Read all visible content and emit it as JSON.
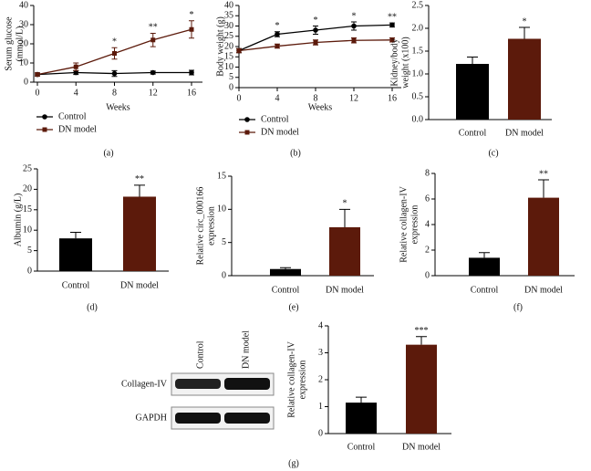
{
  "chart_data": [
    {
      "type": "line",
      "panel_label": "(a)",
      "ylabel": [
        "Serum glucose",
        "(mmol/L)"
      ],
      "xlabel": "Weeks",
      "x": [
        0,
        4,
        8,
        12,
        16
      ],
      "xlim": [
        0,
        16
      ],
      "xticks": [
        0,
        4,
        8,
        12,
        16
      ],
      "ylim": [
        0,
        40
      ],
      "yticks": [
        0,
        10,
        20,
        30,
        40
      ],
      "series": [
        {
          "name": "Control",
          "color": "#000000",
          "marker": "circle",
          "values": [
            4,
            5,
            4.5,
            5,
            5
          ],
          "error": [
            0.8,
            1,
            1.5,
            0.8,
            1.2
          ]
        },
        {
          "name": "DN model",
          "color": "#5c1a0b",
          "marker": "square",
          "values": [
            4,
            8,
            15,
            22,
            27.5
          ],
          "error": [
            0.8,
            2,
            3,
            3.5,
            4.5
          ]
        }
      ],
      "annotations": [
        {
          "text": "*",
          "x": 8
        },
        {
          "text": "**",
          "x": 12
        },
        {
          "text": "*",
          "x": 16
        }
      ]
    },
    {
      "type": "line",
      "panel_label": "(b)",
      "ylabel": [
        "Body weight (g)"
      ],
      "xlabel": "Weeks",
      "x": [
        0,
        4,
        8,
        12,
        16
      ],
      "xlim": [
        0,
        16
      ],
      "xticks": [
        0,
        4,
        8,
        12,
        16
      ],
      "ylim": [
        0,
        40
      ],
      "yticks": [
        0,
        5,
        10,
        15,
        20,
        25,
        30,
        35,
        40
      ],
      "series": [
        {
          "name": "Control",
          "color": "#000000",
          "marker": "circle",
          "values": [
            18,
            26,
            28,
            30,
            30.5
          ],
          "error": [
            1,
            1.2,
            2,
            2,
            1
          ]
        },
        {
          "name": "DN model",
          "color": "#5c1a0b",
          "marker": "square",
          "values": [
            18,
            20.2,
            22,
            23,
            23.2
          ],
          "error": [
            1,
            1,
            1.2,
            1.2,
            1
          ]
        }
      ],
      "annotations": [
        {
          "text": "*",
          "x": 4
        },
        {
          "text": "*",
          "x": 8
        },
        {
          "text": "*",
          "x": 12
        },
        {
          "text": "**",
          "x": 16
        }
      ]
    },
    {
      "type": "bar",
      "panel_label": "(c)",
      "ylabel": [
        "Kidney/body",
        "weight (x100)"
      ],
      "categories": [
        "Control",
        "DN model"
      ],
      "colors": [
        "#000000",
        "#5c1a0b"
      ],
      "values": [
        1.22,
        1.77
      ],
      "error": [
        0.15,
        0.25
      ],
      "ylim": [
        0,
        2.5
      ],
      "yticks": [
        {
          "value": 0,
          "label": "0.0"
        },
        0.5,
        {
          "value": 1,
          "label": "1.0"
        },
        1.5,
        {
          "value": 2,
          "label": "2.0"
        },
        2.5
      ],
      "annotations": [
        {
          "text": "*",
          "category": "DN model"
        }
      ]
    },
    {
      "type": "bar",
      "panel_label": "(d)",
      "ylabel": [
        "Albumin (g/L)"
      ],
      "categories": [
        "Control",
        "DN model"
      ],
      "colors": [
        "#000000",
        "#5c1a0b"
      ],
      "values": [
        8,
        18.2
      ],
      "error": [
        1.5,
        2.8
      ],
      "ylim": [
        0,
        25
      ],
      "yticks": [
        0,
        5,
        10,
        15,
        20,
        25
      ],
      "annotations": [
        {
          "text": "**",
          "category": "DN model"
        }
      ]
    },
    {
      "type": "bar",
      "panel_label": "(e)",
      "ylabel": [
        "Relative circ_000166",
        "expression"
      ],
      "categories": [
        "Control",
        "DN model"
      ],
      "colors": [
        "#000000",
        "#5c1a0b"
      ],
      "values": [
        1,
        7.3
      ],
      "error": [
        0.2,
        2.7
      ],
      "ylim": [
        0,
        15
      ],
      "yticks": [
        0,
        5,
        10,
        15
      ],
      "annotations": [
        {
          "text": "*",
          "category": "DN model"
        }
      ]
    },
    {
      "type": "bar",
      "panel_label": "(f)",
      "ylabel": [
        "Relative collagen-IV",
        "expression"
      ],
      "categories": [
        "Control",
        "DN model"
      ],
      "colors": [
        "#000000",
        "#5c1a0b"
      ],
      "values": [
        1.4,
        6.1
      ],
      "error": [
        0.4,
        1.4
      ],
      "ylim": [
        0,
        8
      ],
      "yticks": [
        0,
        2,
        4,
        6,
        8
      ],
      "annotations": [
        {
          "text": "**",
          "category": "DN model"
        }
      ]
    },
    {
      "type": "bar",
      "panel_label": "(g)",
      "ylabel": [
        "Relative collagen-IV",
        "expression"
      ],
      "categories": [
        "Control",
        "DN model"
      ],
      "colors": [
        "#000000",
        "#5c1a0b"
      ],
      "values": [
        1.15,
        3.3
      ],
      "error": [
        0.2,
        0.3
      ],
      "ylim": [
        0,
        4
      ],
      "yticks": [
        0,
        1,
        2,
        3,
        4
      ],
      "annotations": [
        {
          "text": "***",
          "category": "DN model"
        }
      ]
    }
  ],
  "blot": {
    "lanes": [
      "Control",
      "DN model"
    ],
    "rows": [
      "Collagen-IV",
      "GAPDH"
    ]
  }
}
